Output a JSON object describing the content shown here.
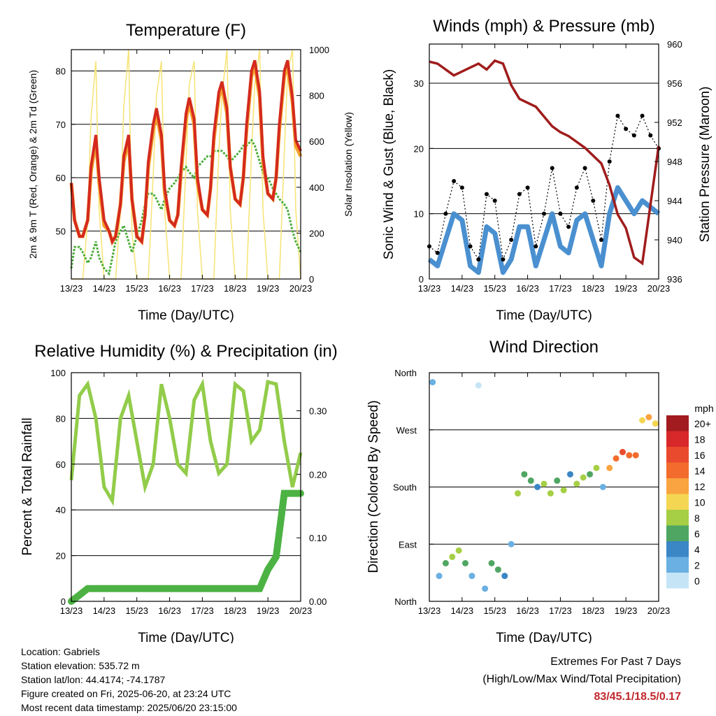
{
  "colors": {
    "red": "#d42a1e",
    "orange": "#f5a02a",
    "green": "#4cad3a",
    "yellow": "#f7e47a",
    "blue": "#4a90d0",
    "black": "#000000",
    "maroon": "#a01c1c",
    "rh_green": "#92cc4a",
    "precip_green": "#4cb243",
    "extremes": "#c0282d"
  },
  "time_ticks": [
    "13/23",
    "14/23",
    "15/23",
    "16/23",
    "17/23",
    "18/23",
    "19/23",
    "20/23"
  ],
  "panels": {
    "temperature": {
      "title": "Temperature (F)",
      "xlabel": "Time (Day/UTC)",
      "ylabel_left": "2m & 9m T (Red, Orange) & 2m Td (Green)",
      "ylabel_right": "Solar Insolation (Yellow)"
    },
    "winds": {
      "title": "Winds (mph) & Pressure (mb)",
      "xlabel": "Time (Day/UTC)",
      "ylabel_left": "Sonic Wind & Gust (Blue, Black)",
      "ylabel_right": "Station Pressure (Maroon)"
    },
    "rh": {
      "title": "Relative Humidity (%) & Precipitation (in)",
      "xlabel": "Time (Day/UTC)",
      "ylabel_left": "Percent & Total Rainfall"
    },
    "direction": {
      "title": "Wind Direction",
      "xlabel": "Time (Day/UTC)",
      "ylabel_left": "Direction (Colored By Speed)",
      "legend_unit": "mph"
    }
  },
  "chart_data": [
    {
      "type": "line",
      "title": "Temperature (F)",
      "xlabel": "Time (Day/UTC)",
      "ylabel": "2m & 9m T (Red, Orange) & 2m Td (Green)",
      "y2label": "Solar Insolation (Yellow)",
      "x_ticks": [
        "13/23",
        "14/23",
        "15/23",
        "16/23",
        "17/23",
        "18/23",
        "19/23",
        "20/23"
      ],
      "ylim": [
        41,
        84
      ],
      "yticks": [
        50,
        60,
        70,
        80
      ],
      "y2lim": [
        0,
        1000
      ],
      "y2ticks": [
        0,
        200,
        400,
        600,
        800,
        1000
      ],
      "x": [
        0,
        0.1,
        0.25,
        0.35,
        0.5,
        0.6,
        0.75,
        0.85,
        1.0,
        1.15,
        1.25,
        1.35,
        1.5,
        1.6,
        1.75,
        1.85,
        2.0,
        2.15,
        2.25,
        2.35,
        2.5,
        2.6,
        2.75,
        2.85,
        3.0,
        3.15,
        3.25,
        3.35,
        3.5,
        3.6,
        3.75,
        3.85,
        4.0,
        4.15,
        4.25,
        4.35,
        4.5,
        4.6,
        4.75,
        4.85,
        5.0,
        5.15,
        5.25,
        5.35,
        5.5,
        5.6,
        5.75,
        5.85,
        6.0,
        6.15,
        6.25,
        6.35,
        6.5,
        6.6,
        6.75,
        6.85,
        7.0
      ],
      "series": [
        {
          "values": [
            59,
            52,
            49,
            49,
            52,
            62,
            68,
            60,
            52,
            50,
            48,
            49,
            55,
            64,
            68,
            56,
            49,
            48,
            53,
            63,
            70,
            73,
            68,
            58,
            52,
            51,
            53,
            62,
            72,
            75,
            71,
            60,
            54,
            53,
            58,
            68,
            76,
            78,
            73,
            62,
            56,
            55,
            60,
            70,
            80,
            82,
            76,
            64,
            57,
            56,
            60,
            70,
            80,
            82,
            75,
            67,
            65
          ]
        },
        {
          "values": [
            59,
            52,
            49,
            49,
            52,
            61,
            67,
            59,
            51,
            50,
            48,
            49,
            55,
            63,
            67,
            56,
            49,
            48,
            53,
            62,
            69,
            72,
            67,
            57,
            52,
            51,
            53,
            61,
            71,
            74,
            70,
            59,
            54,
            53,
            58,
            67,
            75,
            77,
            72,
            62,
            56,
            55,
            60,
            69,
            79,
            81,
            75,
            63,
            57,
            56,
            60,
            69,
            79,
            81,
            74,
            66,
            64
          ]
        },
        {
          "values": [
            43,
            47,
            47,
            46,
            44,
            45,
            48,
            45,
            43,
            42,
            45,
            48,
            50,
            51,
            48,
            46,
            49,
            52,
            55,
            57,
            57,
            56,
            54,
            56,
            58,
            59,
            60,
            61,
            62,
            61,
            60,
            62,
            63,
            64,
            64,
            65,
            65,
            65,
            64,
            63,
            64,
            65,
            66,
            66,
            67,
            66,
            63,
            61,
            60,
            58,
            57,
            56,
            55,
            54,
            50,
            48,
            46
          ]
        },
        {
          "values": [
            0,
            0,
            0,
            0,
            250,
            700,
            950,
            300,
            0,
            0,
            0,
            0,
            300,
            750,
            1000,
            200,
            0,
            0,
            0,
            0,
            450,
            800,
            950,
            300,
            0,
            0,
            0,
            0,
            500,
            850,
            950,
            300,
            0,
            0,
            0,
            0,
            550,
            800,
            1000,
            300,
            0,
            0,
            0,
            0,
            550,
            850,
            1000,
            300,
            0,
            0,
            0,
            0,
            550,
            900,
            1000,
            300,
            0
          ]
        }
      ]
    },
    {
      "type": "line",
      "title": "Winds (mph) & Pressure (mb)",
      "xlabel": "Time (Day/UTC)",
      "ylabel": "Sonic Wind & Gust (Blue, Black)",
      "y2label": "Station Pressure (Maroon)",
      "x_ticks": [
        "13/23",
        "14/23",
        "15/23",
        "16/23",
        "17/23",
        "18/23",
        "19/23",
        "20/23"
      ],
      "ylim": [
        0,
        36
      ],
      "yticks": [
        0,
        10,
        20,
        30
      ],
      "y2lim": [
        936,
        960
      ],
      "y2ticks": [
        936,
        940,
        944,
        948,
        952,
        956,
        960
      ],
      "x": [
        0,
        0.25,
        0.5,
        0.75,
        1.0,
        1.25,
        1.5,
        1.75,
        2.0,
        2.25,
        2.5,
        2.75,
        3.0,
        3.25,
        3.5,
        3.75,
        4.0,
        4.25,
        4.5,
        4.75,
        5.0,
        5.25,
        5.5,
        5.75,
        6.0,
        6.25,
        6.5,
        6.75,
        7.0
      ],
      "series": [
        {
          "values": [
            3,
            2,
            6,
            10,
            9,
            2,
            1,
            8,
            7,
            1,
            3,
            8,
            8,
            2,
            6,
            10,
            5,
            4,
            9,
            10,
            6,
            2,
            10,
            14,
            12,
            10,
            12,
            11,
            10
          ]
        },
        {
          "values": [
            5,
            4,
            10,
            15,
            14,
            5,
            3,
            13,
            12,
            3,
            6,
            13,
            14,
            5,
            10,
            17,
            10,
            8,
            14,
            17,
            12,
            6,
            18,
            25,
            23,
            22,
            25,
            22,
            20
          ]
        },
        {
          "values": [
            958.2,
            958.0,
            957.4,
            956.8,
            957.2,
            957.6,
            958.0,
            957.4,
            958.3,
            958.0,
            955.8,
            954.4,
            954.0,
            953.6,
            952.6,
            951.6,
            951.0,
            950.6,
            950.0,
            949.4,
            948.6,
            947.8,
            945.6,
            942.6,
            941.2,
            938.2,
            937.6,
            943.6,
            949.6
          ]
        }
      ]
    },
    {
      "type": "line",
      "title": "Relative Humidity (%) & Precipitation (in)",
      "xlabel": "Time (Day/UTC)",
      "ylabel": "Percent & Total Rainfall",
      "x_ticks": [
        "13/23",
        "14/23",
        "15/23",
        "16/23",
        "17/23",
        "18/23",
        "19/23",
        "20/23"
      ],
      "ylim": [
        0,
        100
      ],
      "yticks": [
        0,
        20,
        40,
        60,
        80,
        100
      ],
      "y2lim": [
        0,
        0.36
      ],
      "y2ticks": [
        0,
        0.1,
        0.2,
        0.3
      ],
      "y2ticklabels": [
        "0.00",
        "0.10",
        "0.20",
        "0.30"
      ],
      "x": [
        0,
        0.25,
        0.5,
        0.75,
        1.0,
        1.25,
        1.5,
        1.75,
        2.0,
        2.25,
        2.5,
        2.75,
        3.0,
        3.25,
        3.5,
        3.75,
        4.0,
        4.25,
        4.5,
        4.75,
        5.0,
        5.25,
        5.5,
        5.75,
        6.0,
        6.25,
        6.5,
        6.75,
        7.0
      ],
      "series": [
        {
          "values": [
            53,
            90,
            95,
            80,
            50,
            44,
            80,
            90,
            70,
            50,
            60,
            95,
            80,
            60,
            56,
            88,
            95,
            70,
            56,
            60,
            95,
            92,
            70,
            75,
            96,
            95,
            70,
            50,
            65
          ]
        },
        {
          "values": [
            0,
            0.01,
            0.02,
            0.02,
            0.02,
            0.02,
            0.02,
            0.02,
            0.02,
            0.02,
            0.02,
            0.02,
            0.02,
            0.02,
            0.02,
            0.02,
            0.02,
            0.02,
            0.02,
            0.02,
            0.02,
            0.02,
            0.02,
            0.02,
            0.05,
            0.07,
            0.17,
            0.17,
            0.17
          ]
        }
      ]
    },
    {
      "type": "scatter",
      "title": "Wind Direction",
      "xlabel": "Time (Day/UTC)",
      "ylabel": "Direction (Colored By Speed)",
      "x_ticks": [
        "13/23",
        "14/23",
        "15/23",
        "16/23",
        "17/23",
        "18/23",
        "19/23",
        "20/23"
      ],
      "y_ticks": [
        "North",
        "East",
        "South",
        "West",
        "North"
      ],
      "ylim": [
        0,
        360
      ],
      "legend": {
        "title": "mph",
        "labels": [
          "20+",
          "18",
          "16",
          "14",
          "12",
          "10",
          "8",
          "6",
          "4",
          "2",
          "0"
        ],
        "colors": [
          "#a11b1f",
          "#d8282a",
          "#e94a2d",
          "#f36c2d",
          "#f9a440",
          "#f4d653",
          "#a6cf46",
          "#4fa662",
          "#3b86c5",
          "#6ab0e2",
          "#c5e5f7"
        ]
      },
      "x": [
        0.1,
        0.3,
        0.5,
        0.7,
        0.9,
        1.1,
        1.3,
        1.5,
        1.7,
        1.9,
        2.1,
        2.3,
        2.5,
        2.7,
        2.9,
        3.1,
        3.3,
        3.5,
        3.7,
        3.9,
        4.1,
        4.3,
        4.5,
        4.7,
        4.9,
        5.1,
        5.3,
        5.5,
        5.7,
        5.9,
        6.1,
        6.3,
        6.5,
        6.7,
        6.9
      ],
      "series": [
        {
          "values": [
            345,
            40,
            60,
            70,
            80,
            60,
            40,
            340,
            20,
            60,
            50,
            40,
            90,
            170,
            200,
            190,
            180,
            185,
            170,
            190,
            175,
            200,
            185,
            195,
            200,
            210,
            180,
            210,
            225,
            235,
            230,
            230,
            285,
            290,
            280
          ],
          "speeds": [
            2,
            3,
            6,
            8,
            9,
            6,
            3,
            1,
            2,
            7,
            7,
            4,
            3,
            9,
            7,
            6,
            4,
            8,
            9,
            6,
            9,
            5,
            8,
            9,
            7,
            8,
            3,
            12,
            15,
            16,
            14,
            14,
            11,
            13,
            10
          ]
        }
      ]
    }
  ],
  "footer": {
    "location": "Location: Gabriels",
    "elevation": "Station elevation: 535.72 m",
    "latlon": "Station lat/lon: 44.4174; -74.1787",
    "created": "Figure created on Fri, 2025-06-20, at 23:24 UTC",
    "recent": "Most recent data timestamp: 2025/06/20 23:15:00"
  },
  "extremes": {
    "title": "Extremes For Past 7 Days",
    "subtitle": "(High/Low/Max Wind/Total Precipitation)",
    "values": "83/45.1/18.5/0.17"
  }
}
